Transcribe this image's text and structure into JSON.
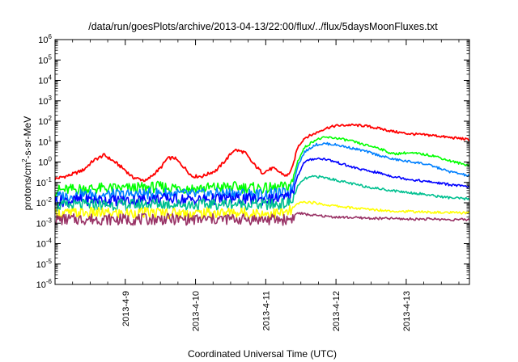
{
  "chart_data": {
    "type": "line",
    "title": "/data/run/goesPlots/archive/2013-04-13/22:00/flux/../flux/5daysMoonFluxes.txt",
    "xlabel": "Coordinated Universal Time (UTC)",
    "ylabel": {
      "prefix": "protons/cm",
      "sup": "2",
      "suffix": "-s-sr-MeV"
    },
    "yscale": "log",
    "ylim": [
      1e-06,
      1000000
    ],
    "xlim": [
      0,
      5.9
    ],
    "x_unit": "days since 2013-04-08 00:00 UTC",
    "grid": false,
    "legend": "none",
    "xticks": [
      {
        "x": 1,
        "label": "2013-4-9"
      },
      {
        "x": 2,
        "label": "2013-4-10"
      },
      {
        "x": 3,
        "label": "2013-4-11"
      },
      {
        "x": 4,
        "label": "2013-4-12"
      },
      {
        "x": 5,
        "label": "2013-4-13"
      }
    ],
    "yticks": [
      {
        "exp": -6
      },
      {
        "exp": -5
      },
      {
        "exp": -4
      },
      {
        "exp": -3
      },
      {
        "exp": -2
      },
      {
        "exp": -1
      },
      {
        "exp": 0
      },
      {
        "exp": 1
      },
      {
        "exp": 2
      },
      {
        "exp": 3
      },
      {
        "exp": 4
      },
      {
        "exp": 5
      },
      {
        "exp": 6
      }
    ],
    "series": [
      {
        "color": "#ff0000",
        "x": [
          0,
          0.2,
          0.4,
          0.55,
          0.7,
          0.85,
          1.0,
          1.1,
          1.3,
          1.5,
          1.6,
          1.7,
          1.85,
          1.95,
          2.1,
          2.3,
          2.45,
          2.55,
          2.7,
          2.8,
          2.95,
          3.1,
          3.3,
          3.38,
          3.45,
          3.55,
          3.7,
          3.85,
          4.0,
          4.2,
          4.4,
          4.6,
          4.8,
          5.0,
          5.2,
          5.4,
          5.6,
          5.8,
          5.9
        ],
        "y": [
          0.15,
          0.22,
          0.4,
          1.2,
          2.2,
          1.0,
          0.4,
          0.18,
          0.12,
          0.5,
          1.5,
          1.6,
          0.5,
          0.2,
          0.2,
          0.4,
          1.5,
          4.0,
          3.0,
          1.0,
          0.3,
          0.5,
          0.2,
          0.5,
          5.0,
          15,
          25,
          45,
          60,
          65,
          60,
          45,
          32,
          25,
          22,
          20,
          16,
          14,
          12
        ]
      },
      {
        "color": "#00ff00",
        "x": [
          0,
          0.5,
          1.0,
          1.5,
          2.0,
          2.5,
          3.0,
          3.3,
          3.38,
          3.45,
          3.55,
          3.7,
          3.85,
          4.0,
          4.2,
          4.4,
          4.6,
          4.8,
          5.0,
          5.2,
          5.4,
          5.6,
          5.8,
          5.9
        ],
        "y": [
          0.04,
          0.05,
          0.05,
          0.06,
          0.05,
          0.06,
          0.05,
          0.06,
          0.1,
          1.0,
          5.0,
          12,
          16,
          15,
          11,
          7,
          5,
          2.5,
          2.8,
          2.5,
          2.0,
          1.2,
          0.8,
          0.7
        ]
      },
      {
        "color": "#0080ff",
        "x": [
          0,
          0.5,
          1.0,
          1.5,
          2.0,
          2.5,
          3.0,
          3.3,
          3.38,
          3.45,
          3.55,
          3.7,
          3.85,
          4.0,
          4.2,
          4.4,
          4.6,
          4.8,
          5.0,
          5.2,
          5.4,
          5.6,
          5.8,
          5.9
        ],
        "y": [
          0.02,
          0.025,
          0.025,
          0.03,
          0.025,
          0.03,
          0.025,
          0.03,
          0.05,
          0.6,
          3.0,
          7.0,
          8.0,
          7.0,
          5.0,
          3.5,
          2.2,
          1.4,
          1.1,
          0.9,
          0.6,
          0.35,
          0.25,
          0.2
        ]
      },
      {
        "color": "#0000ff",
        "x": [
          0,
          0.5,
          1.0,
          1.5,
          2.0,
          2.5,
          3.0,
          3.3,
          3.38,
          3.45,
          3.55,
          3.7,
          3.85,
          4.0,
          4.2,
          4.4,
          4.6,
          4.8,
          5.0,
          5.2,
          5.4,
          5.6,
          5.8,
          5.9
        ],
        "y": [
          0.012,
          0.014,
          0.013,
          0.016,
          0.014,
          0.016,
          0.014,
          0.018,
          0.03,
          0.2,
          1.0,
          1.5,
          1.4,
          1.0,
          0.6,
          0.4,
          0.3,
          0.2,
          0.15,
          0.12,
          0.1,
          0.08,
          0.065,
          0.06
        ]
      },
      {
        "color": "#00c090",
        "x": [
          0,
          0.5,
          1.0,
          1.5,
          2.0,
          2.5,
          3.0,
          3.3,
          3.38,
          3.45,
          3.55,
          3.7,
          3.85,
          4.0,
          4.2,
          4.4,
          4.6,
          4.8,
          5.0,
          5.2,
          5.4,
          5.6,
          5.8,
          5.9
        ],
        "y": [
          0.007,
          0.008,
          0.008,
          0.009,
          0.008,
          0.009,
          0.008,
          0.009,
          0.012,
          0.06,
          0.15,
          0.2,
          0.17,
          0.13,
          0.09,
          0.065,
          0.05,
          0.04,
          0.033,
          0.028,
          0.022,
          0.018,
          0.016,
          0.015
        ]
      },
      {
        "color": "#ffff00",
        "x": [
          0,
          0.5,
          1.0,
          1.5,
          2.0,
          2.5,
          3.0,
          3.3,
          3.38,
          3.45,
          3.55,
          3.7,
          3.85,
          4.0,
          4.2,
          4.4,
          4.6,
          4.8,
          5.0,
          5.2,
          5.4,
          5.6,
          5.8,
          5.9
        ],
        "y": [
          0.003,
          0.0032,
          0.003,
          0.0033,
          0.003,
          0.0033,
          0.003,
          0.0032,
          0.0045,
          0.009,
          0.011,
          0.01,
          0.008,
          0.007,
          0.0058,
          0.005,
          0.0045,
          0.004,
          0.0038,
          0.0036,
          0.0034,
          0.0033,
          0.0032,
          0.0032
        ]
      },
      {
        "color": "#993366",
        "x": [
          0,
          0.5,
          1.0,
          1.5,
          2.0,
          2.5,
          3.0,
          3.3,
          3.38,
          3.45,
          3.55,
          3.7,
          3.85,
          4.0,
          4.2,
          4.4,
          4.6,
          4.8,
          5.0,
          5.2,
          5.4,
          5.6,
          5.8,
          5.9
        ],
        "y": [
          0.0015,
          0.0016,
          0.0015,
          0.0016,
          0.0015,
          0.0016,
          0.0015,
          0.0015,
          0.0018,
          0.0032,
          0.0028,
          0.0024,
          0.0022,
          0.002,
          0.0019,
          0.0018,
          0.0017,
          0.0017,
          0.0016,
          0.0016,
          0.0016,
          0.0015,
          0.0015,
          0.0015
        ]
      }
    ]
  }
}
